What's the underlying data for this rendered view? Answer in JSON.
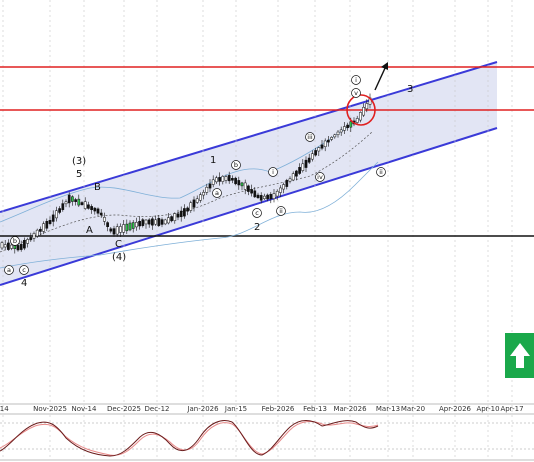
{
  "chart_data": {
    "type": "candlestick",
    "title": "",
    "xlabel": "",
    "ylabel": "",
    "grid": true,
    "x_tick_labels": [
      "-14",
      "Nov-2025",
      "Nov-14",
      "Dec-2025",
      "Dec-12",
      "Jan-2026",
      "Jan-15",
      "Feb-2026",
      "Feb-13",
      "Mar-2026",
      "Mar-13",
      "Mar-20",
      "Apr-2026",
      "Apr-10",
      "Apr-17"
    ],
    "horizontal_levels": [
      {
        "name": "resistance-upper",
        "color": "#e02020"
      },
      {
        "name": "resistance-lower",
        "color": "#e02020"
      },
      {
        "name": "support",
        "color": "#111111"
      }
    ],
    "channel": {
      "fill": "#dde0f2",
      "edge_color": "#3a3ad8"
    },
    "wave_labels": [
      "(3)",
      "5",
      "B",
      "A",
      "C",
      "(4)",
      "4",
      "1",
      "2",
      "3",
      "a",
      "b",
      "c",
      "i",
      "ii",
      "iii",
      "iv",
      "v"
    ],
    "annotations": {
      "target_arrow": "up-right",
      "circle_color": "#e02020"
    },
    "badge": {
      "icon": "up-arrow-icon",
      "color": "#1aa84a"
    },
    "oscillator": {
      "type": "stochastic",
      "lines": [
        "#6b1d1d",
        "#e88a8a"
      ]
    }
  }
}
